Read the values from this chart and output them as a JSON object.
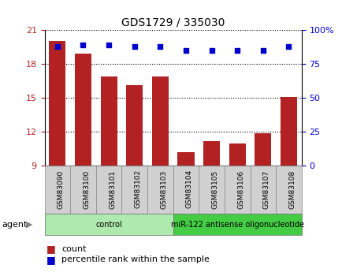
{
  "title": "GDS1729 / 335030",
  "samples": [
    "GSM83090",
    "GSM83100",
    "GSM83101",
    "GSM83102",
    "GSM83103",
    "GSM83104",
    "GSM83105",
    "GSM83106",
    "GSM83107",
    "GSM83108"
  ],
  "bar_values": [
    20.0,
    18.9,
    16.9,
    16.1,
    16.9,
    10.2,
    11.2,
    11.0,
    11.9,
    15.1
  ],
  "dot_values": [
    88,
    89,
    89,
    88,
    88,
    85,
    85,
    85,
    85,
    88
  ],
  "ylim_left": [
    9,
    21
  ],
  "ylim_right": [
    0,
    100
  ],
  "yticks_left": [
    9,
    12,
    15,
    18,
    21
  ],
  "yticks_right": [
    0,
    25,
    50,
    75,
    100
  ],
  "yticklabels_right": [
    "0",
    "25",
    "50",
    "75",
    "100%"
  ],
  "bar_color": "#B22222",
  "dot_color": "#0000CC",
  "bar_bottom": 9,
  "groups": [
    {
      "label": "control",
      "start": 0,
      "end": 5,
      "color": "#AEEAAE"
    },
    {
      "label": "miR-122 antisense oligonucleotide",
      "start": 5,
      "end": 10,
      "color": "#44CC44"
    }
  ],
  "agent_label": "agent",
  "legend_count_label": "count",
  "legend_pct_label": "percentile rank within the sample",
  "background_color": "#FFFFFF",
  "plot_bg_color": "#FFFFFF",
  "grid_color": "#555555",
  "tick_label_bg": "#D0D0D0"
}
